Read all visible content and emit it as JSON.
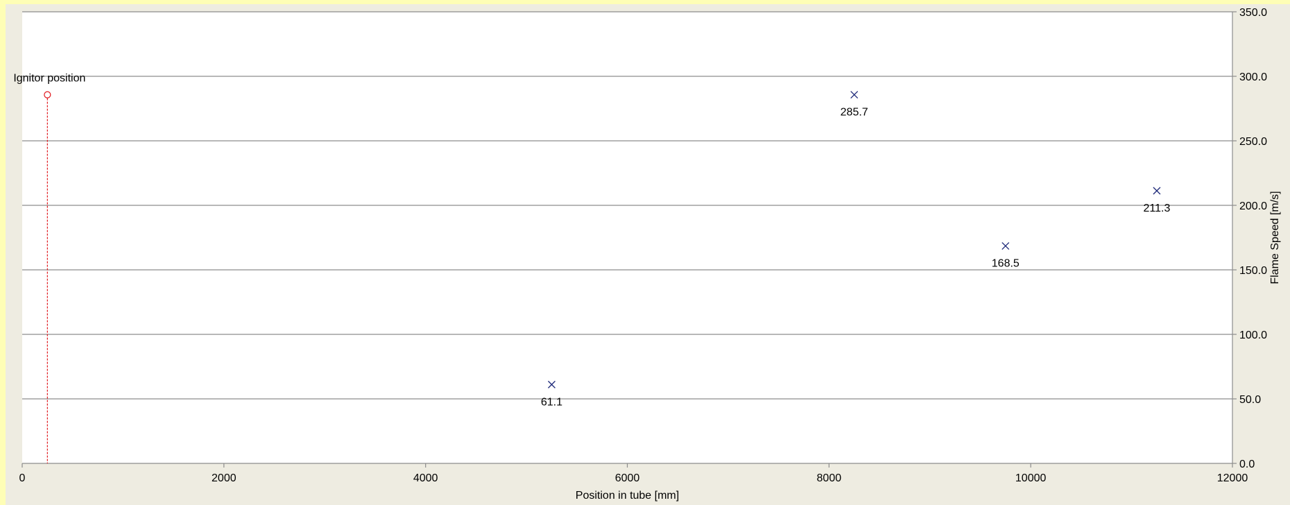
{
  "chart_data": {
    "type": "scatter",
    "title": "",
    "xlabel": "Position in tube [mm]",
    "ylabel": "Flame Speed [m/s]",
    "xlim": [
      0,
      12000
    ],
    "ylim": [
      0,
      350
    ],
    "xticks": [
      0,
      2000,
      4000,
      6000,
      8000,
      10000,
      12000
    ],
    "xtick_labels": [
      "0",
      "2000",
      "4000",
      "6000",
      "8000",
      "10000",
      "12000"
    ],
    "yticks": [
      0,
      50,
      100,
      150,
      200,
      250,
      300,
      350
    ],
    "ytick_labels": [
      "0.0",
      "50.0",
      "100.0",
      "150.0",
      "200.0",
      "250.0",
      "300.0",
      "350.0"
    ],
    "yaxis_side": "right",
    "grid": "horizontal",
    "legend": "none",
    "series": [
      {
        "marker": "x",
        "color": "#1f2a7a",
        "points": [
          {
            "x": 5250,
            "y": 61.1,
            "label": "61.1"
          },
          {
            "x": 8250,
            "y": 285.7,
            "label": "285.7"
          },
          {
            "x": 9750,
            "y": 168.5,
            "label": "168.5"
          },
          {
            "x": 11250,
            "y": 211.3,
            "label": "211.3"
          }
        ]
      }
    ],
    "annotations": [
      {
        "text": "Ignitor position",
        "x": 250,
        "y": 285.7,
        "marker": "circle",
        "line": "dashed-vertical",
        "color": "#e0161c"
      }
    ]
  }
}
